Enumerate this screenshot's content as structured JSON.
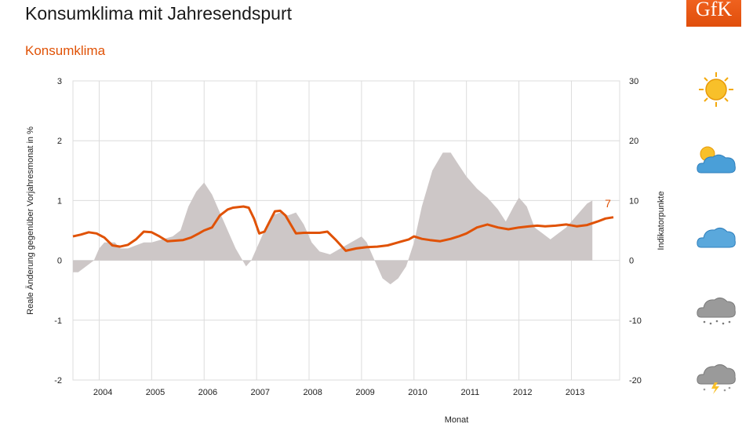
{
  "header": {
    "title": "Konsumklima mit Jahresendspurt",
    "subtitle": "Konsumklima",
    "logo_text": "GfK"
  },
  "weather_icons": [
    "sun-icon",
    "sun-cloud-icon",
    "cloud-icon",
    "rain-cloud-icon",
    "thunderstorm-cloud-icon"
  ],
  "colors": {
    "line": "#e05206",
    "area": "#cdc7c7",
    "grid": "#dcdcdc",
    "subtitle": "#e05206"
  },
  "chart_data": {
    "type": "line",
    "title": "Konsumklima",
    "xlabel": "Monat",
    "ylabel_left": "Reale Änderung gegenüber Vorjahresmonat in %",
    "ylabel_right": "Indikatorpunkte",
    "y_left_range": [
      -2,
      3
    ],
    "y_right_range": [
      -20,
      30
    ],
    "y_left_ticks": [
      "3",
      "2",
      "1",
      "0",
      "-1",
      "-2"
    ],
    "y_right_ticks": [
      "30",
      "20",
      "10",
      "0",
      "-10",
      "-20"
    ],
    "x_range": [
      2003.5,
      2013.92
    ],
    "x_tick_labels": [
      "2004",
      "2005",
      "2006",
      "2007",
      "2008",
      "2009",
      "2010",
      "2011",
      "2012",
      "2013"
    ],
    "grid": true,
    "end_label": "7",
    "series": [
      {
        "kind": "area",
        "axis": "left",
        "x": [
          2003.5,
          2003.6,
          2003.75,
          2003.9,
          2004.0,
          2004.1,
          2004.3,
          2004.4,
          2004.55,
          2004.7,
          2004.85,
          2005.0,
          2005.2,
          2005.4,
          2005.55,
          2005.7,
          2005.85,
          2006.0,
          2006.15,
          2006.3,
          2006.45,
          2006.6,
          2006.8,
          2006.9,
          2007.0,
          2007.15,
          2007.3,
          2007.45,
          2007.6,
          2007.75,
          2007.9,
          2008.05,
          2008.2,
          2008.4,
          2008.6,
          2008.8,
          2009.0,
          2009.1,
          2009.25,
          2009.4,
          2009.55,
          2009.7,
          2009.85,
          2010.0,
          2010.15,
          2010.35,
          2010.55,
          2010.7,
          2010.85,
          2011.0,
          2011.2,
          2011.4,
          2011.6,
          2011.75,
          2011.9,
          2012.0,
          2012.15,
          2012.3,
          2012.45,
          2012.6,
          2012.75,
          2012.9,
          2013.0,
          2013.15,
          2013.3,
          2013.4
        ],
        "values": [
          -0.2,
          -0.2,
          -0.1,
          0.0,
          0.2,
          0.3,
          0.3,
          0.2,
          0.2,
          0.25,
          0.3,
          0.3,
          0.35,
          0.4,
          0.5,
          0.9,
          1.15,
          1.3,
          1.1,
          0.8,
          0.5,
          0.2,
          -0.1,
          0.0,
          0.2,
          0.5,
          0.75,
          0.8,
          0.75,
          0.8,
          0.6,
          0.3,
          0.15,
          0.1,
          0.2,
          0.3,
          0.4,
          0.3,
          0.0,
          -0.3,
          -0.4,
          -0.3,
          -0.1,
          0.3,
          0.9,
          1.5,
          1.8,
          1.8,
          1.6,
          1.4,
          1.2,
          1.05,
          0.85,
          0.65,
          0.9,
          1.05,
          0.9,
          0.55,
          0.45,
          0.35,
          0.45,
          0.55,
          0.65,
          0.8,
          0.95,
          1.0
        ]
      },
      {
        "kind": "line",
        "axis": "right",
        "x": [
          2003.5,
          2003.65,
          2003.8,
          2003.95,
          2004.1,
          2004.25,
          2004.4,
          2004.55,
          2004.7,
          2004.85,
          2005.0,
          2005.15,
          2005.3,
          2005.45,
          2005.6,
          2005.75,
          2005.9,
          2006.0,
          2006.15,
          2006.3,
          2006.45,
          2006.55,
          2006.65,
          2006.75,
          2006.85,
          2006.95,
          2007.05,
          2007.15,
          2007.25,
          2007.35,
          2007.45,
          2007.55,
          2007.75,
          2007.9,
          2008.0,
          2008.1,
          2008.2,
          2008.35,
          2008.5,
          2008.7,
          2008.9,
          2009.1,
          2009.3,
          2009.5,
          2009.7,
          2009.9,
          2010.0,
          2010.15,
          2010.3,
          2010.5,
          2010.7,
          2010.85,
          2011.0,
          2011.2,
          2011.4,
          2011.6,
          2011.8,
          2012.0,
          2012.2,
          2012.35,
          2012.5,
          2012.7,
          2012.9,
          2013.1,
          2013.3,
          2013.5,
          2013.65,
          2013.8
        ],
        "values": [
          4.0,
          4.3,
          4.7,
          4.5,
          3.8,
          2.5,
          2.3,
          2.6,
          3.5,
          4.8,
          4.7,
          4.0,
          3.2,
          3.3,
          3.4,
          3.8,
          4.5,
          5.0,
          5.5,
          7.5,
          8.5,
          8.8,
          8.9,
          9.0,
          8.8,
          7.0,
          4.5,
          4.8,
          6.5,
          8.2,
          8.3,
          7.5,
          4.5,
          4.6,
          4.6,
          4.6,
          4.6,
          4.8,
          3.5,
          1.6,
          2.0,
          2.2,
          2.3,
          2.5,
          3.0,
          3.5,
          4.0,
          3.6,
          3.4,
          3.2,
          3.6,
          4.0,
          4.5,
          5.5,
          6.0,
          5.5,
          5.2,
          5.5,
          5.7,
          5.8,
          5.7,
          5.8,
          6.0,
          5.7,
          5.9,
          6.5,
          7.0,
          7.2
        ]
      }
    ]
  }
}
